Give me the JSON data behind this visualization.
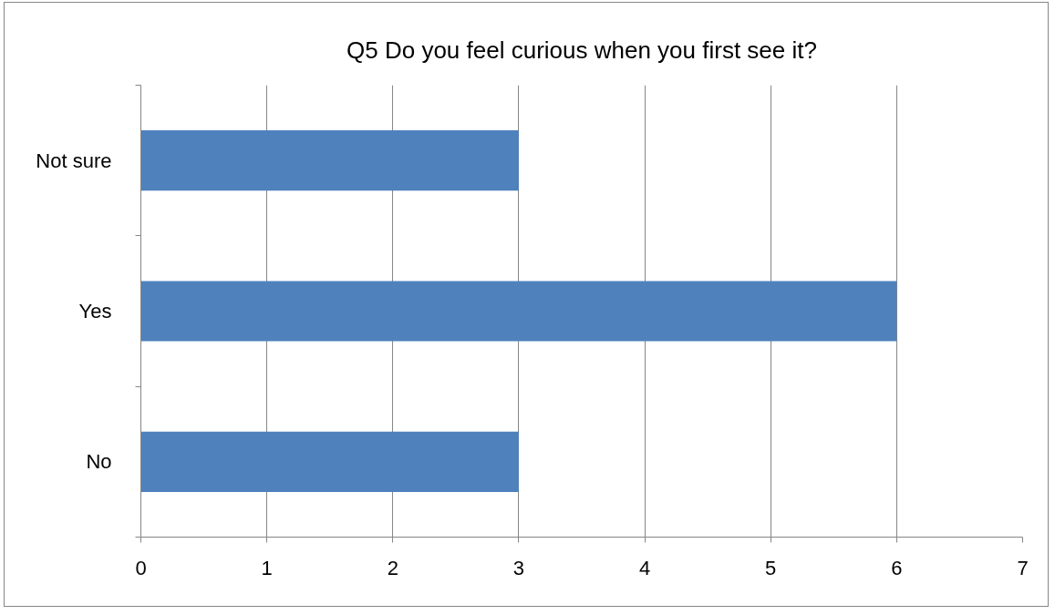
{
  "chart_data": {
    "type": "bar",
    "orientation": "horizontal",
    "title": "Q5 Do you feel curious when you first see it?",
    "categories": [
      "Not sure",
      "Yes",
      "No"
    ],
    "values": [
      3,
      6,
      3
    ],
    "color": "#4f81bd",
    "xlim": [
      0,
      7
    ],
    "xticks": [
      0,
      1,
      2,
      3,
      4,
      5,
      6,
      7
    ],
    "grid": "x"
  }
}
